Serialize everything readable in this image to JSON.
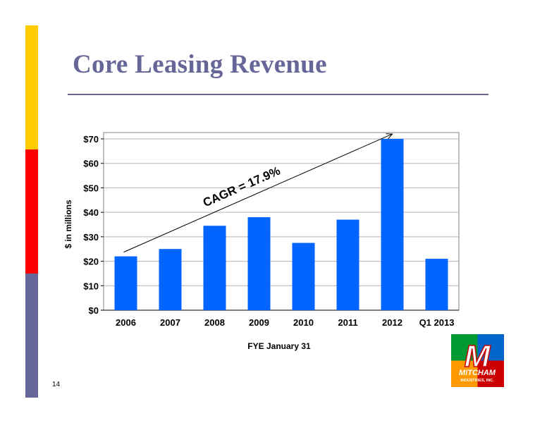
{
  "slide": {
    "title": "Core Leasing Revenue",
    "page_number": "14"
  },
  "logo": {
    "mark": "M",
    "name": "MITCHAM",
    "tagline": "INDUSTRIES, INC."
  },
  "colors": {
    "title": "#666699",
    "bar": "#0066ff",
    "side_yellow": "#ffcc00",
    "side_red": "#ff0000",
    "side_purple": "#666699"
  },
  "chart_data": {
    "type": "bar",
    "title": "",
    "categories": [
      "2006",
      "2007",
      "2008",
      "2009",
      "2010",
      "2011",
      "2012",
      "Q1 2013"
    ],
    "values": [
      22,
      25,
      34.5,
      38,
      27.5,
      37,
      70,
      21
    ],
    "xlabel": "FYE January 31",
    "ylabel": "$ in millions",
    "ylim": [
      0,
      70
    ],
    "yticks": [
      0,
      10,
      20,
      30,
      40,
      50,
      60,
      70
    ],
    "ytick_labels": [
      "$0",
      "$10",
      "$20",
      "$30",
      "$40",
      "$50",
      "$60",
      "$70"
    ],
    "grid": true,
    "annotation": {
      "text": "CAGR = 17.9%",
      "arrow_from": [
        "2006",
        22
      ],
      "arrow_to": [
        "2012",
        72
      ]
    }
  }
}
